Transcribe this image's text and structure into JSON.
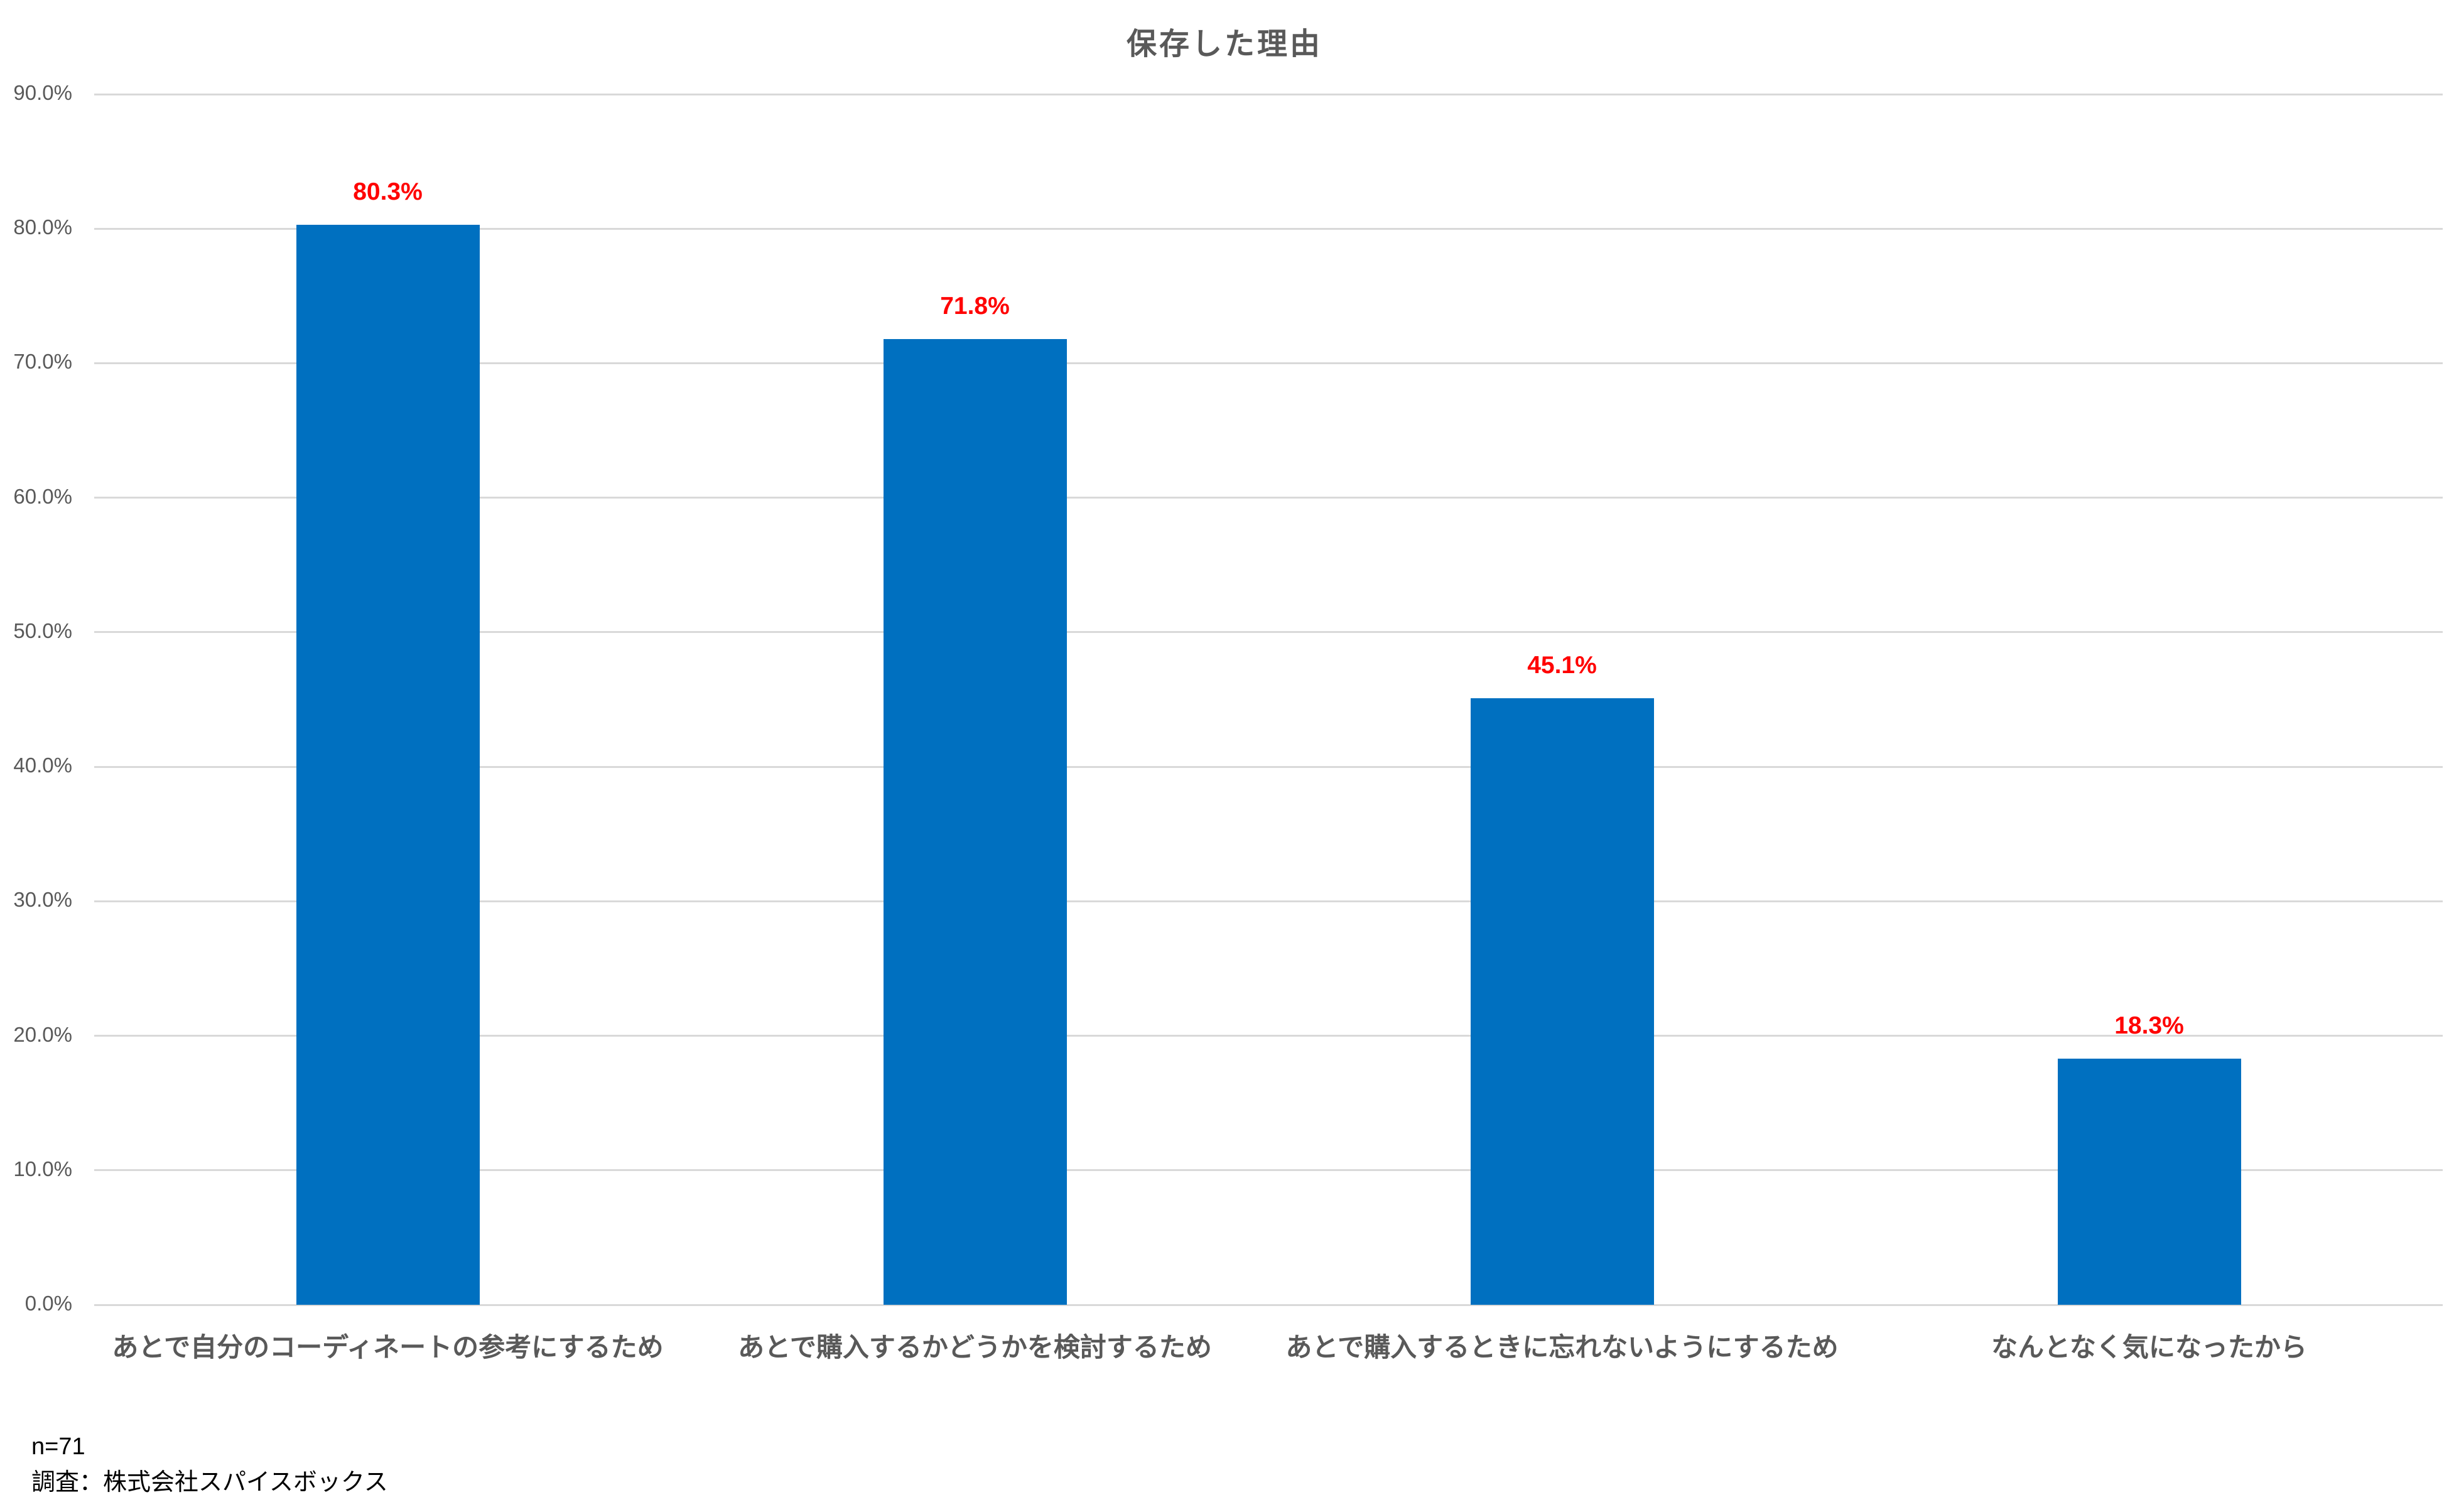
{
  "chart_data": {
    "type": "bar",
    "title": "保存した理由",
    "categories": [
      "あとで自分のコーディネートの参考にするため",
      "あとで購入するかどうかを検討するため",
      "あとで購入するときに忘れないようにするため",
      "なんとなく気になったから"
    ],
    "values": [
      80.3,
      71.8,
      45.1,
      18.3
    ],
    "value_labels": [
      "80.3%",
      "71.8%",
      "45.1%",
      "18.3%"
    ],
    "y_ticks": [
      "0.0%",
      "10.0%",
      "20.0%",
      "30.0%",
      "40.0%",
      "50.0%",
      "60.0%",
      "70.0%",
      "80.0%",
      "90.0%"
    ],
    "ylim": [
      0,
      90
    ],
    "grid": true,
    "legend": "none",
    "xlabel": "",
    "ylabel": "",
    "bar_color": "#0070c0",
    "value_label_color": "#ff0000",
    "grid_color": "#d9d9d9",
    "axis_text_color": "#595959",
    "title_color": "#595959",
    "annotations": [
      "n=71",
      "調査：株式会社スパイスボックス"
    ]
  },
  "footer": {
    "n_label": "n=71",
    "source_label": "調査：株式会社スパイスボックス"
  }
}
